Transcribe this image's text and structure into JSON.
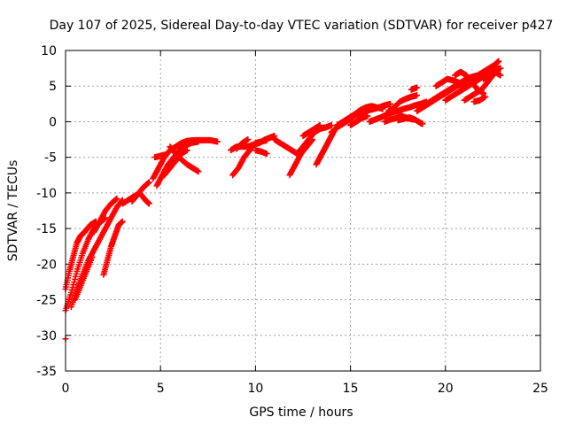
{
  "chart_data": {
    "type": "scatter",
    "title": "Day 107 of 2025, Sidereal Day-to-day VTEC variation (SDTVAR) for receiver p427",
    "xlabel": "GPS time / hours",
    "ylabel": "SDTVAR / TECUs",
    "xlim": [
      0,
      25
    ],
    "ylim": [
      -35,
      10
    ],
    "xticks": [
      0,
      5,
      10,
      15,
      20,
      25
    ],
    "yticks": [
      -35,
      -30,
      -25,
      -20,
      -15,
      -10,
      -5,
      0,
      5,
      10
    ],
    "grid": true,
    "marker": "plus",
    "color": "#ff0000",
    "series": [
      {
        "segments": [
          [
            [
              0.0,
              -23.5
            ],
            [
              0.2,
              -21.0
            ],
            [
              0.4,
              -19.0
            ],
            [
              0.6,
              -17.0
            ],
            [
              0.8,
              -16.0
            ],
            [
              1.0,
              -15.5
            ],
            [
              1.3,
              -14.5
            ],
            [
              1.6,
              -14.0
            ]
          ],
          [
            [
              0.0,
              -26.5
            ],
            [
              0.3,
              -24.0
            ],
            [
              0.6,
              -21.0
            ],
            [
              0.9,
              -18.5
            ],
            [
              1.2,
              -16.5
            ],
            [
              1.5,
              -15.0
            ],
            [
              1.8,
              -14.2
            ],
            [
              2.1,
              -13.5
            ]
          ],
          [
            [
              0.3,
              -26.0
            ],
            [
              0.6,
              -23.5
            ],
            [
              0.9,
              -21.5
            ],
            [
              1.2,
              -19.5
            ],
            [
              1.5,
              -18.0
            ],
            [
              1.8,
              -16.5
            ],
            [
              2.1,
              -15.0
            ],
            [
              2.4,
              -13.5
            ],
            [
              2.7,
              -12.0
            ],
            [
              3.0,
              -11.0
            ]
          ],
          [
            [
              0.5,
              -25.0
            ],
            [
              0.8,
              -23.0
            ],
            [
              1.1,
              -21.0
            ],
            [
              1.4,
              -19.0
            ]
          ],
          [
            [
              2.0,
              -21.5
            ],
            [
              2.2,
              -19.5
            ],
            [
              2.4,
              -17.5
            ],
            [
              2.6,
              -16.0
            ],
            [
              2.8,
              -14.5
            ],
            [
              3.0,
              -14.0
            ]
          ],
          [
            [
              1.5,
              -15.5
            ],
            [
              1.8,
              -14.0
            ],
            [
              2.1,
              -12.5
            ],
            [
              2.4,
              -11.5
            ],
            [
              2.7,
              -10.8
            ]
          ],
          [
            [
              3.0,
              -11.5
            ],
            [
              3.3,
              -11.0
            ],
            [
              3.6,
              -10.5
            ],
            [
              3.9,
              -10.0
            ],
            [
              4.2,
              -11.0
            ],
            [
              4.4,
              -11.5
            ]
          ],
          [
            [
              3.5,
              -11.2
            ],
            [
              3.8,
              -10.2
            ],
            [
              4.1,
              -9.2
            ],
            [
              4.4,
              -8.5
            ]
          ],
          [
            [
              4.6,
              -8.0
            ],
            [
              4.9,
              -6.5
            ],
            [
              5.2,
              -5.0
            ],
            [
              5.5,
              -4.0
            ],
            [
              5.8,
              -3.5
            ],
            [
              6.1,
              -3.0
            ],
            [
              6.4,
              -2.7
            ],
            [
              6.8,
              -2.6
            ],
            [
              7.2,
              -2.6
            ],
            [
              7.6,
              -2.6
            ],
            [
              8.0,
              -2.8
            ]
          ],
          [
            [
              4.8,
              -9.0
            ],
            [
              5.1,
              -7.5
            ],
            [
              5.4,
              -6.0
            ],
            [
              5.7,
              -5.0
            ],
            [
              6.0,
              -4.0
            ],
            [
              6.3,
              -3.4
            ],
            [
              6.6,
              -3.0
            ],
            [
              7.0,
              -2.8
            ]
          ],
          [
            [
              5.2,
              -7.5
            ],
            [
              5.5,
              -6.5
            ],
            [
              5.8,
              -5.5
            ],
            [
              6.1,
              -4.5
            ],
            [
              6.4,
              -4.0
            ]
          ],
          [
            [
              5.5,
              -3.5
            ],
            [
              5.8,
              -4.5
            ],
            [
              6.1,
              -5.3
            ],
            [
              6.4,
              -6.0
            ],
            [
              6.7,
              -6.5
            ],
            [
              7.0,
              -7.0
            ]
          ],
          [
            [
              4.7,
              -5.0
            ],
            [
              5.0,
              -4.8
            ],
            [
              5.3,
              -4.6
            ]
          ],
          [
            [
              8.8,
              -7.5
            ],
            [
              9.1,
              -6.5
            ],
            [
              9.4,
              -5.0
            ],
            [
              9.7,
              -4.0
            ],
            [
              10.0,
              -3.0
            ],
            [
              10.3,
              -2.8
            ],
            [
              10.6,
              -2.6
            ]
          ],
          [
            [
              8.7,
              -4.0
            ],
            [
              9.0,
              -3.5
            ],
            [
              9.3,
              -3.5
            ],
            [
              9.6,
              -3.5
            ],
            [
              9.9,
              -3.2
            ],
            [
              10.2,
              -3.0
            ],
            [
              10.5,
              -2.5
            ],
            [
              10.8,
              -2.2
            ],
            [
              11.0,
              -2.0
            ]
          ],
          [
            [
              9.0,
              -3.8
            ],
            [
              9.3,
              -3.0
            ],
            [
              9.6,
              -2.5
            ]
          ],
          [
            [
              10.0,
              -4.0
            ],
            [
              10.3,
              -4.2
            ],
            [
              10.6,
              -4.5
            ]
          ],
          [
            [
              11.0,
              -2.5
            ],
            [
              11.3,
              -3.0
            ],
            [
              11.6,
              -3.5
            ],
            [
              11.9,
              -4.0
            ],
            [
              12.2,
              -4.5
            ],
            [
              12.5,
              -3.5
            ],
            [
              12.8,
              -2.5
            ],
            [
              13.1,
              -1.5
            ],
            [
              13.4,
              -1.0
            ],
            [
              13.7,
              -0.8
            ],
            [
              14.0,
              -0.5
            ]
          ],
          [
            [
              11.8,
              -7.5
            ],
            [
              12.1,
              -6.0
            ],
            [
              12.4,
              -4.5
            ],
            [
              12.7,
              -3.5
            ],
            [
              13.0,
              -2.5
            ]
          ],
          [
            [
              13.2,
              -6.0
            ],
            [
              13.4,
              -5.0
            ],
            [
              13.6,
              -4.0
            ],
            [
              13.8,
              -3.0
            ],
            [
              14.0,
              -2.0
            ],
            [
              14.2,
              -1.0
            ]
          ],
          [
            [
              12.5,
              -2.0
            ],
            [
              12.8,
              -1.5
            ],
            [
              13.1,
              -1.0
            ],
            [
              13.4,
              -0.5
            ]
          ],
          [
            [
              14.0,
              -1.5
            ],
            [
              14.3,
              -0.8
            ],
            [
              14.6,
              -0.3
            ],
            [
              14.9,
              0.2
            ],
            [
              15.2,
              0.8
            ],
            [
              15.5,
              1.2
            ],
            [
              15.8,
              1.5
            ],
            [
              16.1,
              1.7
            ],
            [
              16.4,
              1.9
            ]
          ],
          [
            [
              14.3,
              -0.5
            ],
            [
              14.6,
              0.0
            ],
            [
              14.9,
              0.5
            ],
            [
              15.2,
              1.0
            ],
            [
              15.5,
              1.6
            ],
            [
              15.8,
              2.0
            ],
            [
              16.1,
              2.2
            ],
            [
              16.4,
              2.0
            ],
            [
              16.7,
              1.8
            ]
          ],
          [
            [
              15.0,
              -0.5
            ],
            [
              15.3,
              0.0
            ],
            [
              15.6,
              0.5
            ],
            [
              15.9,
              0.8
            ]
          ],
          [
            [
              16.0,
              0.0
            ],
            [
              16.3,
              0.3
            ],
            [
              16.6,
              0.6
            ],
            [
              16.9,
              1.0
            ],
            [
              17.2,
              1.3
            ],
            [
              17.5,
              1.5
            ],
            [
              17.8,
              1.8
            ],
            [
              18.1,
              2.0
            ],
            [
              18.4,
              2.3
            ],
            [
              18.7,
              2.5
            ],
            [
              19.0,
              2.8
            ]
          ],
          [
            [
              16.8,
              0.0
            ],
            [
              17.1,
              0.3
            ],
            [
              17.4,
              0.5
            ],
            [
              17.7,
              0.8
            ],
            [
              18.0,
              0.5
            ],
            [
              18.3,
              0.3
            ]
          ],
          [
            [
              17.0,
              1.5
            ],
            [
              17.3,
              2.0
            ],
            [
              17.6,
              2.8
            ],
            [
              17.9,
              3.2
            ],
            [
              18.2,
              3.5
            ],
            [
              18.5,
              3.7
            ]
          ],
          [
            [
              16.5,
              2.0
            ],
            [
              16.8,
              2.3
            ],
            [
              17.1,
              2.5
            ]
          ],
          [
            [
              17.5,
              0.2
            ],
            [
              17.8,
              0.4
            ],
            [
              18.1,
              0.6
            ],
            [
              18.4,
              0.3
            ],
            [
              18.7,
              -0.2
            ],
            [
              18.8,
              -0.3
            ]
          ],
          [
            [
              18.5,
              1.5
            ],
            [
              18.8,
              2.0
            ],
            [
              19.1,
              2.5
            ],
            [
              19.4,
              3.0
            ],
            [
              19.7,
              3.5
            ],
            [
              20.0,
              4.0
            ],
            [
              20.3,
              4.5
            ],
            [
              20.6,
              5.0
            ],
            [
              20.9,
              5.3
            ],
            [
              21.2,
              5.5
            ],
            [
              21.5,
              5.7
            ]
          ],
          [
            [
              19.0,
              2.5
            ],
            [
              19.3,
              3.0
            ],
            [
              19.6,
              3.5
            ],
            [
              19.9,
              4.0
            ],
            [
              20.2,
              4.5
            ],
            [
              20.5,
              5.0
            ],
            [
              20.8,
              5.5
            ],
            [
              21.1,
              6.0
            ],
            [
              21.4,
              6.3
            ],
            [
              21.7,
              6.5
            ],
            [
              22.0,
              7.0
            ],
            [
              22.3,
              7.5
            ],
            [
              22.6,
              8.0
            ],
            [
              22.8,
              8.5
            ]
          ],
          [
            [
              19.5,
              5.0
            ],
            [
              19.8,
              5.5
            ],
            [
              20.1,
              6.0
            ],
            [
              20.4,
              5.8
            ],
            [
              20.7,
              5.5
            ]
          ],
          [
            [
              20.0,
              3.0
            ],
            [
              20.3,
              3.5
            ],
            [
              20.6,
              4.0
            ],
            [
              20.9,
              4.5
            ],
            [
              21.2,
              5.0
            ],
            [
              21.5,
              5.5
            ],
            [
              21.8,
              6.0
            ],
            [
              22.1,
              6.5
            ],
            [
              22.4,
              7.0
            ],
            [
              22.7,
              7.3
            ],
            [
              22.9,
              7.5
            ]
          ],
          [
            [
              21.0,
              3.0
            ],
            [
              21.3,
              3.5
            ],
            [
              21.6,
              4.0
            ],
            [
              21.9,
              4.5
            ],
            [
              22.2,
              5.5
            ],
            [
              22.5,
              6.5
            ],
            [
              22.8,
              7.5
            ]
          ],
          [
            [
              20.5,
              6.5
            ],
            [
              20.8,
              7.0
            ],
            [
              21.1,
              6.5
            ],
            [
              21.4,
              5.5
            ],
            [
              21.7,
              4.5
            ],
            [
              22.0,
              4.0
            ]
          ],
          [
            [
              22.0,
              6.0
            ],
            [
              22.3,
              6.5
            ],
            [
              22.6,
              7.0
            ],
            [
              22.9,
              6.5
            ]
          ],
          [
            [
              21.5,
              2.8
            ],
            [
              21.8,
              3.0
            ],
            [
              22.1,
              3.5
            ]
          ],
          [
            [
              0.0,
              -30.5
            ]
          ],
          [
            [
              18.2,
              4.5
            ],
            [
              18.5,
              4.8
            ]
          ]
        ]
      }
    ]
  }
}
